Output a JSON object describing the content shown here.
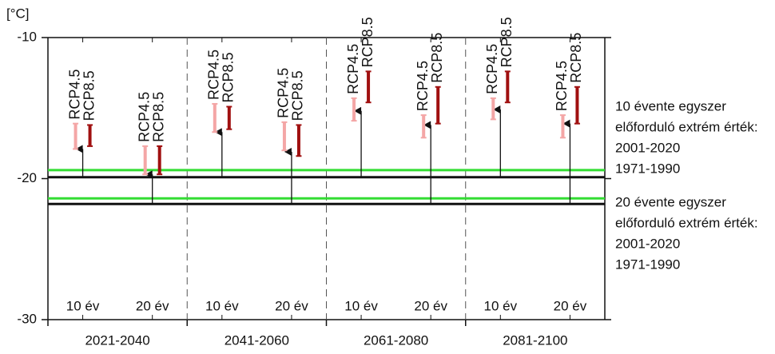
{
  "chart_data": {
    "type": "range_arrow",
    "y_label": "[°C]",
    "ylim": [
      -30,
      -10
    ],
    "yticks": [
      -10,
      -20,
      -30
    ],
    "periods": [
      "2021-2040",
      "2041-2060",
      "2061-2080",
      "2081-2100"
    ],
    "subcategories": [
      "10 év",
      "20 év"
    ],
    "return_levels": [
      {
        "title": [
          "10 évente egyszer",
          "előforduló extrém érték:"
        ],
        "lines": [
          {
            "name": "2001-2020",
            "color": "#33dd33",
            "value": -19.4
          },
          {
            "name": "1971-1990",
            "color": "#111111",
            "value": -19.9
          }
        ]
      },
      {
        "title": [
          "20 évente egyszer",
          "előforduló extrém érték:"
        ],
        "lines": [
          {
            "name": "2001-2020",
            "color": "#33dd33",
            "value": -21.4
          },
          {
            "name": "1971-1990",
            "color": "#111111",
            "value": -21.8
          }
        ]
      }
    ],
    "arrows": {
      "color": "#111111",
      "values": [
        -17.9,
        -19.7,
        -16.7,
        -18.1,
        -15.2,
        -16.2,
        -15.1,
        -16.1
      ]
    },
    "series": [
      {
        "name": "RCP4.5",
        "color": "#f4a6a6",
        "low": [
          -17.9,
          -19.7,
          -16.7,
          -18.0,
          -15.9,
          -17.1,
          -15.8,
          -17.1
        ],
        "high": [
          -16.1,
          -17.7,
          -14.7,
          -16.0,
          -14.3,
          -15.5,
          -14.3,
          -15.5
        ]
      },
      {
        "name": "RCP8.5",
        "color": "#a01010",
        "low": [
          -17.7,
          -19.7,
          -16.5,
          -18.4,
          -14.6,
          -16.1,
          -14.6,
          -16.1
        ],
        "high": [
          -16.2,
          -17.7,
          -14.9,
          -16.2,
          -12.4,
          -13.5,
          -12.4,
          -13.5
        ]
      }
    ]
  }
}
